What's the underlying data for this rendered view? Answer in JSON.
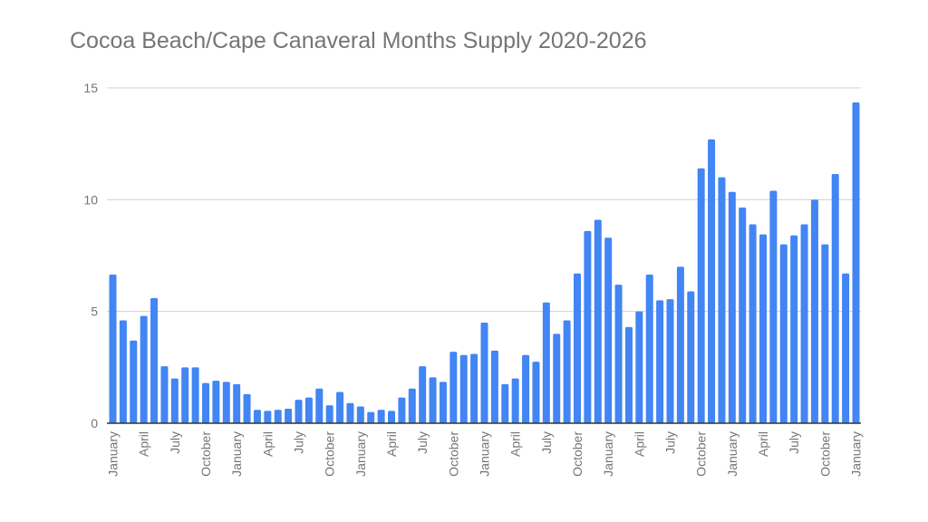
{
  "chart_data": {
    "type": "bar",
    "title": "Cocoa Beach/Cape Canaveral Months Supply 2020-2026",
    "xlabel": "",
    "ylabel": "",
    "ylim": [
      0,
      15
    ],
    "yticks": [
      0,
      5,
      10,
      15
    ],
    "grid": true,
    "legend": "none",
    "color": "#4285f4",
    "categories": [
      "January",
      "February",
      "March",
      "April",
      "May",
      "June",
      "July",
      "August",
      "September",
      "October",
      "November",
      "December",
      "January",
      "February",
      "March",
      "April",
      "May",
      "June",
      "July",
      "August",
      "September",
      "October",
      "November",
      "December",
      "January",
      "February",
      "March",
      "April",
      "May",
      "June",
      "July",
      "August",
      "September",
      "October",
      "November",
      "December",
      "January",
      "February",
      "March",
      "April",
      "May",
      "June",
      "July",
      "August",
      "September",
      "October",
      "November",
      "December",
      "January",
      "February",
      "March",
      "April",
      "May",
      "June",
      "July",
      "August",
      "September",
      "October",
      "November",
      "December",
      "January",
      "February",
      "March",
      "April",
      "May",
      "June",
      "July",
      "August",
      "September",
      "October",
      "November",
      "December",
      "January"
    ],
    "values": [
      6.65,
      4.6,
      3.7,
      4.8,
      5.6,
      2.55,
      2.0,
      2.5,
      2.5,
      1.8,
      1.9,
      1.85,
      1.75,
      1.3,
      0.6,
      0.55,
      0.6,
      0.65,
      1.05,
      1.15,
      1.55,
      0.8,
      1.4,
      0.9,
      0.75,
      0.5,
      0.6,
      0.55,
      1.15,
      1.55,
      2.55,
      2.05,
      1.85,
      3.2,
      3.05,
      3.1,
      4.5,
      3.25,
      1.75,
      2.0,
      3.05,
      2.75,
      5.4,
      4.0,
      4.6,
      6.7,
      8.6,
      9.1,
      8.3,
      6.2,
      4.3,
      5.0,
      6.65,
      5.5,
      5.55,
      7.0,
      5.9,
      11.4,
      12.7,
      11.0,
      10.35,
      9.65,
      8.9,
      8.45,
      10.4,
      8.0,
      8.4,
      8.9,
      10.0,
      8.0,
      11.15,
      6.7,
      14.35
    ]
  }
}
